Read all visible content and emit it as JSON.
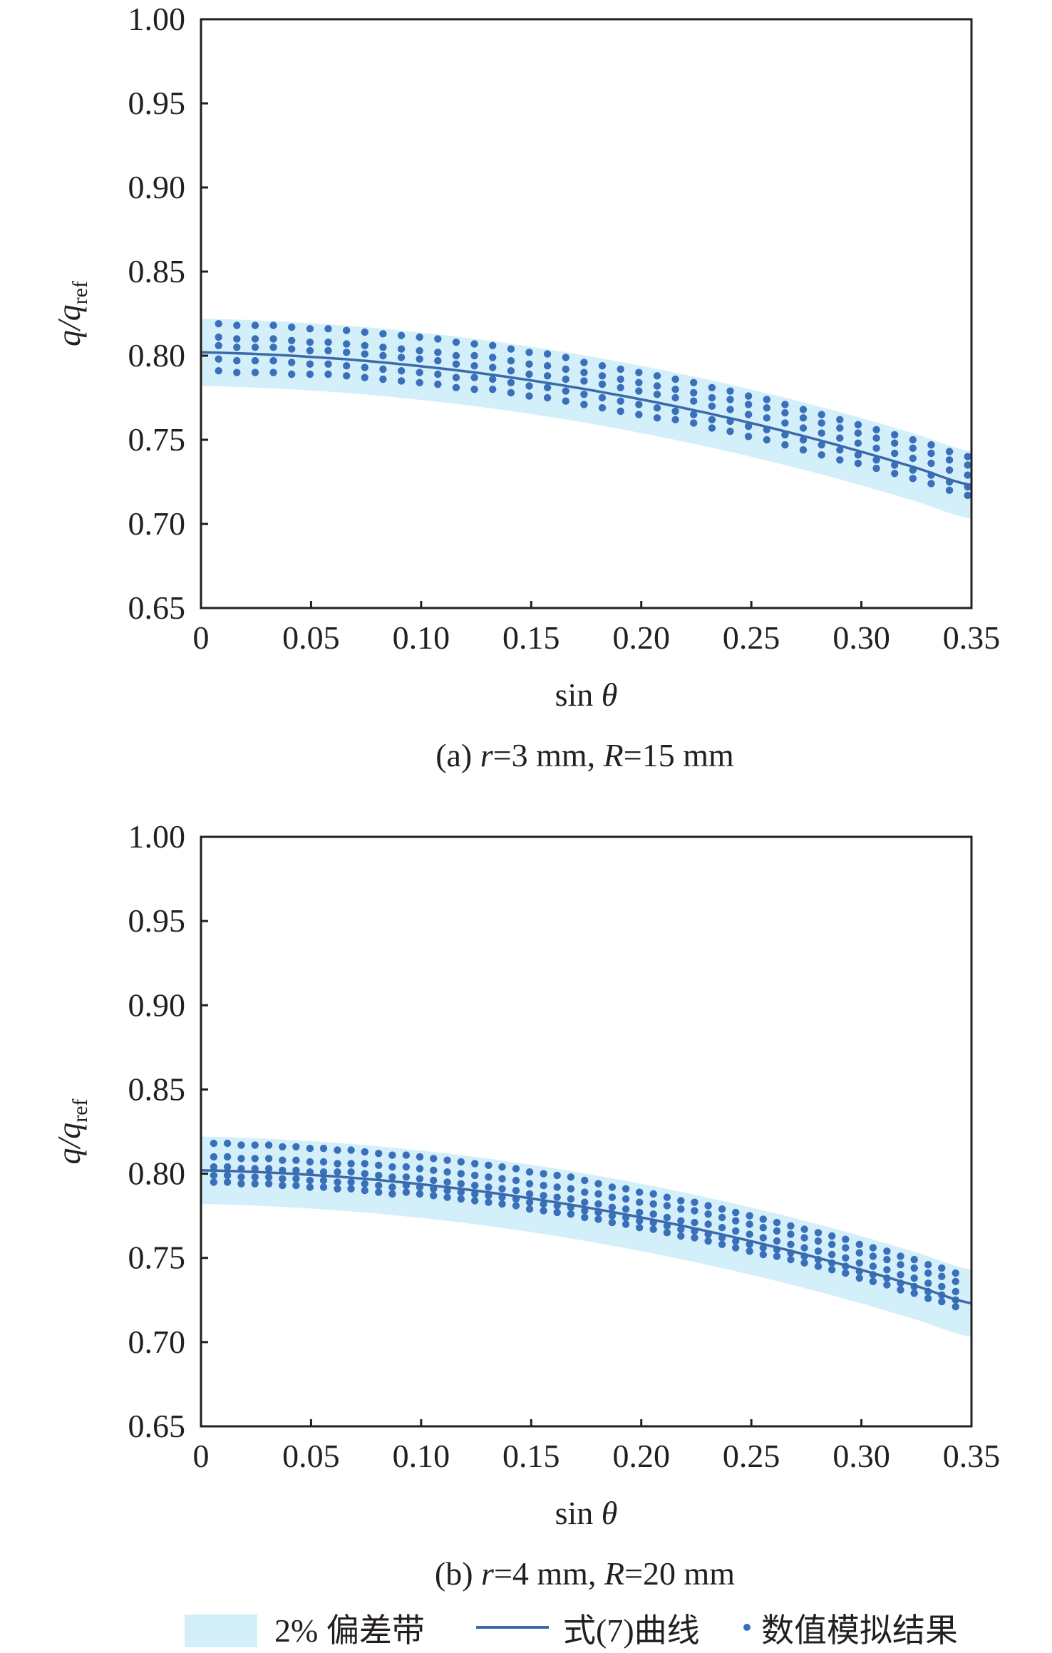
{
  "colors": {
    "band": "#d3effa",
    "curve": "#3b6aaa",
    "dots": "#3a6fba",
    "axis": "#231f20"
  },
  "legend": {
    "band_label": "2% 偏差带",
    "curve_label": "式(7)曲线",
    "dots_label": "数值模拟结果"
  },
  "chart_data": [
    {
      "type": "scatter",
      "panel": "a",
      "caption": {
        "prefix": "(a) ",
        "r_sym": "r",
        "r_val": "=3 mm, ",
        "R_sym": "R",
        "R_val": "=15 mm"
      },
      "xlabel": {
        "text": "sin ",
        "sym": "θ"
      },
      "ylabel": {
        "main": "q/q",
        "sub": "ref"
      },
      "xlim": [
        0,
        0.35
      ],
      "ylim": [
        0.65,
        1.0
      ],
      "xticks": [
        "0",
        "0.05",
        "0.10",
        "0.15",
        "0.20",
        "0.25",
        "0.30",
        "0.35"
      ],
      "xtick_values": [
        0,
        0.05,
        0.1,
        0.15,
        0.2,
        0.25,
        0.3,
        0.35
      ],
      "yticks": [
        "0.65",
        "0.70",
        "0.75",
        "0.80",
        "0.85",
        "0.90",
        "0.95",
        "1.00"
      ],
      "ytick_values": [
        0.65,
        0.7,
        0.75,
        0.8,
        0.85,
        0.9,
        0.95,
        1.0
      ],
      "grid": false,
      "curve": {
        "name": "式(7)曲线",
        "x": [
          0,
          0.025,
          0.05,
          0.075,
          0.1,
          0.125,
          0.15,
          0.175,
          0.2,
          0.225,
          0.25,
          0.275,
          0.3,
          0.325,
          0.35
        ],
        "y": [
          0.802,
          0.801,
          0.7993,
          0.7969,
          0.7937,
          0.7899,
          0.7853,
          0.78,
          0.774,
          0.7673,
          0.7599,
          0.7518,
          0.7429,
          0.7333,
          0.7231
        ]
      },
      "band": {
        "name": "2% 偏差带",
        "halfwidth": 0.02
      },
      "dots": {
        "name": "数值模拟结果",
        "x": [
          0.008,
          0.0163,
          0.0246,
          0.0329,
          0.0412,
          0.0495,
          0.0578,
          0.0661,
          0.0744,
          0.0827,
          0.091,
          0.0993,
          0.1076,
          0.1159,
          0.1242,
          0.1325,
          0.1408,
          0.1491,
          0.1574,
          0.1657,
          0.174,
          0.1823,
          0.1906,
          0.1989,
          0.2072,
          0.2155,
          0.2238,
          0.2321,
          0.2404,
          0.2487,
          0.257,
          0.2653,
          0.2736,
          0.2819,
          0.2902,
          0.2985,
          0.3068,
          0.3151,
          0.3234,
          0.3317,
          0.34,
          0.3483
        ],
        "rows": [
          [
            0.819,
            0.818,
            0.818,
            0.818,
            0.817,
            0.816,
            0.816,
            0.815,
            0.814,
            0.813,
            0.812,
            0.811,
            0.81,
            0.808,
            0.807,
            0.806,
            0.804,
            0.802,
            0.801,
            0.799,
            0.796,
            0.794,
            0.792,
            0.79,
            0.788,
            0.786,
            0.784,
            0.781,
            0.779,
            0.776,
            0.774,
            0.771,
            0.768,
            0.765,
            0.762,
            0.759,
            0.756,
            0.753,
            0.75,
            0.747,
            0.743,
            0.74
          ],
          [
            0.811,
            0.81,
            0.81,
            0.81,
            0.809,
            0.808,
            0.808,
            0.807,
            0.806,
            0.805,
            0.804,
            0.803,
            0.802,
            0.8,
            0.8,
            0.799,
            0.797,
            0.795,
            0.794,
            0.792,
            0.79,
            0.788,
            0.786,
            0.784,
            0.782,
            0.78,
            0.778,
            0.775,
            0.774,
            0.771,
            0.769,
            0.766,
            0.763,
            0.76,
            0.757,
            0.754,
            0.751,
            0.748,
            0.745,
            0.742,
            0.738,
            0.735
          ],
          [
            0.806,
            0.805,
            0.805,
            0.805,
            0.804,
            0.803,
            0.803,
            0.802,
            0.801,
            0.8,
            0.799,
            0.798,
            0.797,
            0.795,
            0.794,
            0.793,
            0.791,
            0.789,
            0.788,
            0.786,
            0.785,
            0.783,
            0.781,
            0.779,
            0.777,
            0.775,
            0.773,
            0.77,
            0.768,
            0.765,
            0.763,
            0.76,
            0.757,
            0.754,
            0.751,
            0.748,
            0.745,
            0.742,
            0.739,
            0.736,
            0.732,
            0.729
          ],
          [
            0.798,
            0.797,
            0.797,
            0.797,
            0.796,
            0.795,
            0.795,
            0.794,
            0.793,
            0.792,
            0.791,
            0.79,
            0.789,
            0.787,
            0.787,
            0.786,
            0.784,
            0.782,
            0.781,
            0.779,
            0.777,
            0.775,
            0.773,
            0.771,
            0.769,
            0.767,
            0.765,
            0.762,
            0.761,
            0.758,
            0.756,
            0.753,
            0.75,
            0.747,
            0.744,
            0.741,
            0.738,
            0.735,
            0.732,
            0.729,
            0.725,
            0.722
          ],
          [
            0.791,
            0.79,
            0.79,
            0.79,
            0.789,
            0.789,
            0.789,
            0.788,
            0.787,
            0.786,
            0.785,
            0.784,
            0.783,
            0.781,
            0.78,
            0.78,
            0.778,
            0.776,
            0.775,
            0.773,
            0.771,
            0.769,
            0.767,
            0.765,
            0.763,
            0.762,
            0.76,
            0.757,
            0.755,
            0.752,
            0.75,
            0.747,
            0.744,
            0.741,
            0.738,
            0.736,
            0.733,
            0.73,
            0.727,
            0.724,
            0.72,
            0.717
          ]
        ]
      }
    },
    {
      "type": "scatter",
      "panel": "b",
      "caption": {
        "prefix": "(b) ",
        "r_sym": "r",
        "r_val": "=4 mm, ",
        "R_sym": "R",
        "R_val": "=20 mm"
      },
      "xlabel": {
        "text": "sin ",
        "sym": "θ"
      },
      "ylabel": {
        "main": "q/q",
        "sub": "ref"
      },
      "xlim": [
        0,
        0.35
      ],
      "ylim": [
        0.65,
        1.0
      ],
      "xticks": [
        "0",
        "0.05",
        "0.10",
        "0.15",
        "0.20",
        "0.25",
        "0.30",
        "0.35"
      ],
      "xtick_values": [
        0,
        0.05,
        0.1,
        0.15,
        0.2,
        0.25,
        0.3,
        0.35
      ],
      "yticks": [
        "0.65",
        "0.70",
        "0.75",
        "0.80",
        "0.85",
        "0.90",
        "0.95",
        "1.00"
      ],
      "ytick_values": [
        0.65,
        0.7,
        0.75,
        0.8,
        0.85,
        0.9,
        0.95,
        1.0
      ],
      "grid": false,
      "curve": {
        "name": "式(7)曲线",
        "x": [
          0,
          0.025,
          0.05,
          0.075,
          0.1,
          0.125,
          0.15,
          0.175,
          0.2,
          0.225,
          0.25,
          0.275,
          0.3,
          0.325,
          0.35
        ],
        "y": [
          0.802,
          0.801,
          0.7993,
          0.7969,
          0.7937,
          0.7899,
          0.7853,
          0.78,
          0.774,
          0.7673,
          0.7599,
          0.7518,
          0.7429,
          0.7333,
          0.7231
        ]
      },
      "band": {
        "name": "2% 偏差带",
        "halfwidth": 0.02
      },
      "dots": {
        "name": "数值模拟结果",
        "x": [
          0.0058,
          0.012,
          0.0183,
          0.0245,
          0.0308,
          0.037,
          0.0432,
          0.0495,
          0.0557,
          0.062,
          0.0682,
          0.0744,
          0.0807,
          0.0869,
          0.0932,
          0.0994,
          0.1056,
          0.1119,
          0.1181,
          0.1244,
          0.1306,
          0.1368,
          0.1431,
          0.1493,
          0.1556,
          0.1618,
          0.168,
          0.1743,
          0.1805,
          0.1868,
          0.193,
          0.1992,
          0.2055,
          0.2117,
          0.218,
          0.2242,
          0.2304,
          0.2367,
          0.2429,
          0.2492,
          0.2554,
          0.2616,
          0.2679,
          0.2741,
          0.2804,
          0.2866,
          0.2928,
          0.2991,
          0.3053,
          0.3116,
          0.3178,
          0.324,
          0.3303,
          0.3365,
          0.3428
        ],
        "rows": [
          [
            0.818,
            0.818,
            0.817,
            0.817,
            0.817,
            0.816,
            0.816,
            0.815,
            0.815,
            0.814,
            0.814,
            0.813,
            0.812,
            0.811,
            0.811,
            0.81,
            0.809,
            0.808,
            0.807,
            0.806,
            0.805,
            0.804,
            0.803,
            0.801,
            0.8,
            0.799,
            0.798,
            0.796,
            0.794,
            0.792,
            0.791,
            0.789,
            0.788,
            0.786,
            0.784,
            0.783,
            0.781,
            0.779,
            0.777,
            0.775,
            0.773,
            0.771,
            0.769,
            0.767,
            0.765,
            0.763,
            0.761,
            0.758,
            0.756,
            0.754,
            0.751,
            0.749,
            0.746,
            0.744,
            0.741
          ],
          [
            0.81,
            0.81,
            0.809,
            0.809,
            0.809,
            0.808,
            0.808,
            0.807,
            0.807,
            0.806,
            0.806,
            0.806,
            0.805,
            0.804,
            0.804,
            0.803,
            0.802,
            0.801,
            0.8,
            0.799,
            0.798,
            0.797,
            0.796,
            0.794,
            0.793,
            0.792,
            0.791,
            0.789,
            0.788,
            0.786,
            0.785,
            0.783,
            0.782,
            0.781,
            0.779,
            0.778,
            0.776,
            0.774,
            0.772,
            0.77,
            0.768,
            0.766,
            0.764,
            0.762,
            0.76,
            0.758,
            0.756,
            0.753,
            0.751,
            0.749,
            0.746,
            0.744,
            0.741,
            0.739,
            0.736
          ],
          [
            0.804,
            0.804,
            0.803,
            0.803,
            0.803,
            0.802,
            0.802,
            0.801,
            0.801,
            0.801,
            0.801,
            0.8,
            0.799,
            0.798,
            0.798,
            0.797,
            0.796,
            0.795,
            0.794,
            0.793,
            0.792,
            0.791,
            0.79,
            0.788,
            0.787,
            0.786,
            0.785,
            0.783,
            0.782,
            0.78,
            0.779,
            0.777,
            0.776,
            0.774,
            0.772,
            0.771,
            0.77,
            0.768,
            0.766,
            0.764,
            0.762,
            0.76,
            0.758,
            0.756,
            0.754,
            0.752,
            0.75,
            0.747,
            0.745,
            0.743,
            0.74,
            0.738,
            0.735,
            0.733,
            0.73
          ],
          [
            0.799,
            0.799,
            0.798,
            0.798,
            0.798,
            0.797,
            0.797,
            0.796,
            0.796,
            0.795,
            0.795,
            0.794,
            0.793,
            0.792,
            0.793,
            0.792,
            0.791,
            0.79,
            0.789,
            0.788,
            0.787,
            0.786,
            0.785,
            0.783,
            0.782,
            0.781,
            0.78,
            0.778,
            0.777,
            0.775,
            0.774,
            0.772,
            0.771,
            0.769,
            0.767,
            0.766,
            0.764,
            0.762,
            0.76,
            0.758,
            0.756,
            0.755,
            0.753,
            0.751,
            0.749,
            0.747,
            0.745,
            0.742,
            0.74,
            0.738,
            0.735,
            0.733,
            0.73,
            0.728,
            0.725
          ],
          [
            0.795,
            0.795,
            0.794,
            0.794,
            0.794,
            0.793,
            0.793,
            0.792,
            0.792,
            0.791,
            0.791,
            0.79,
            0.789,
            0.788,
            0.789,
            0.788,
            0.787,
            0.786,
            0.785,
            0.784,
            0.783,
            0.782,
            0.781,
            0.779,
            0.778,
            0.777,
            0.776,
            0.774,
            0.773,
            0.771,
            0.77,
            0.768,
            0.767,
            0.765,
            0.763,
            0.762,
            0.76,
            0.758,
            0.756,
            0.754,
            0.752,
            0.751,
            0.749,
            0.747,
            0.745,
            0.743,
            0.741,
            0.738,
            0.736,
            0.734,
            0.731,
            0.729,
            0.726,
            0.724,
            0.721
          ]
        ]
      }
    }
  ]
}
